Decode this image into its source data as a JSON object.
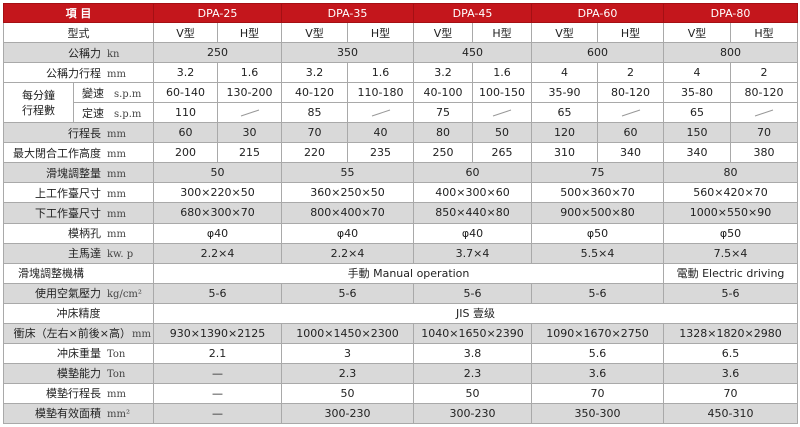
{
  "header": {
    "item": "項  目",
    "models": [
      "DPA-25",
      "DPA-35",
      "DPA-45",
      "DPA-60",
      "DPA-80"
    ]
  },
  "type_row": {
    "label": "型式",
    "v": "V型",
    "h": "H型"
  },
  "rows": {
    "capacity": {
      "label": "公稱力",
      "unit": "kn",
      "values": [
        "250",
        "350",
        "450",
        "600",
        "800"
      ]
    },
    "rated_stroke": {
      "label": "公稱力行程",
      "unit": "mm",
      "values": [
        "3.2",
        "1.6",
        "3.2",
        "1.6",
        "3.2",
        "1.6",
        "4",
        "2",
        "4",
        "2"
      ]
    },
    "spm_group_label": "每分鐘\n行程數",
    "variable_spm": {
      "label": "變速",
      "unit": "s.p.m",
      "values": [
        "60-140",
        "130-200",
        "40-120",
        "110-180",
        "40-100",
        "100-150",
        "35-90",
        "80-120",
        "35-80",
        "80-120"
      ]
    },
    "fixed_spm": {
      "label": "定速",
      "unit": "s.p.m",
      "values": [
        "110",
        "85",
        "75",
        "65",
        "65"
      ]
    },
    "stroke": {
      "label": "行程長",
      "unit": "mm",
      "values": [
        "60",
        "30",
        "70",
        "40",
        "80",
        "50",
        "120",
        "60",
        "150",
        "70"
      ]
    },
    "die_height": {
      "label": "最大閉合工作高度",
      "unit": "mm",
      "values": [
        "200",
        "215",
        "220",
        "235",
        "250",
        "265",
        "310",
        "340",
        "340",
        "380"
      ]
    },
    "slide_adjust": {
      "label": "滑塊調整量",
      "unit": "mm",
      "values": [
        "50",
        "55",
        "60",
        "75",
        "80"
      ]
    },
    "upper_bolster": {
      "label": "上工作臺尺寸",
      "unit": "mm",
      "values": [
        "300×220×50",
        "360×250×50",
        "400×300×60",
        "500×360×70",
        "560×420×70"
      ]
    },
    "lower_bolster": {
      "label": "下工作臺尺寸",
      "unit": "mm",
      "values": [
        "680×300×70",
        "800×400×70",
        "850×440×80",
        "900×500×80",
        "1000×550×90"
      ]
    },
    "shank_hole": {
      "label": "模柄孔",
      "unit": "mm",
      "values": [
        "φ40",
        "φ40",
        "φ40",
        "φ50",
        "φ50"
      ]
    },
    "motor": {
      "label": "主馬達",
      "unit": "kw. p",
      "values": [
        "2.2×4",
        "2.2×4",
        "3.7×4",
        "5.5×4",
        "7.5×4"
      ]
    },
    "slide_mechanism": {
      "label": "滑塊調整機構",
      "manual": "手動 Manual operation",
      "electric": "電動 Electric driving"
    },
    "air_pressure": {
      "label": "使用空氣壓力",
      "unit": "kg/cm²",
      "values": [
        "5-6",
        "5-6",
        "5-6",
        "5-6",
        "5-6"
      ]
    },
    "accuracy": {
      "label": "冲床精度",
      "value": "JIS 壹级"
    },
    "dimensions": {
      "label": "衝床（左右×前後×高）",
      "unit": "mm",
      "values": [
        "930×1390×2125",
        "1000×1450×2300",
        "1040×1650×2390",
        "1090×1670×2750",
        "1328×1820×2980"
      ]
    },
    "weight": {
      "label": "冲床重量",
      "unit": "Ton",
      "values": [
        "2.1",
        "3",
        "3.8",
        "5.6",
        "6.5"
      ]
    },
    "cushion_capacity": {
      "label": "模墊能力",
      "unit": "Ton",
      "values": [
        "—",
        "2.3",
        "2.3",
        "3.6",
        "3.6"
      ]
    },
    "cushion_stroke": {
      "label": "模墊行程長",
      "unit": "mm",
      "values": [
        "—",
        "50",
        "50",
        "70",
        "70"
      ]
    },
    "cushion_area": {
      "label": "模墊有效面積",
      "unit": "mm²",
      "values": [
        "—",
        "300-230",
        "300-230",
        "350-300",
        "450-310"
      ]
    }
  },
  "icons": {
    "not_applicable": "diagonal-dash-icon"
  },
  "colors": {
    "header_bg": "#c4161c",
    "header_text": "#ffffff",
    "shaded_row": "#d9d9d9",
    "border": "#a9a9a9"
  }
}
